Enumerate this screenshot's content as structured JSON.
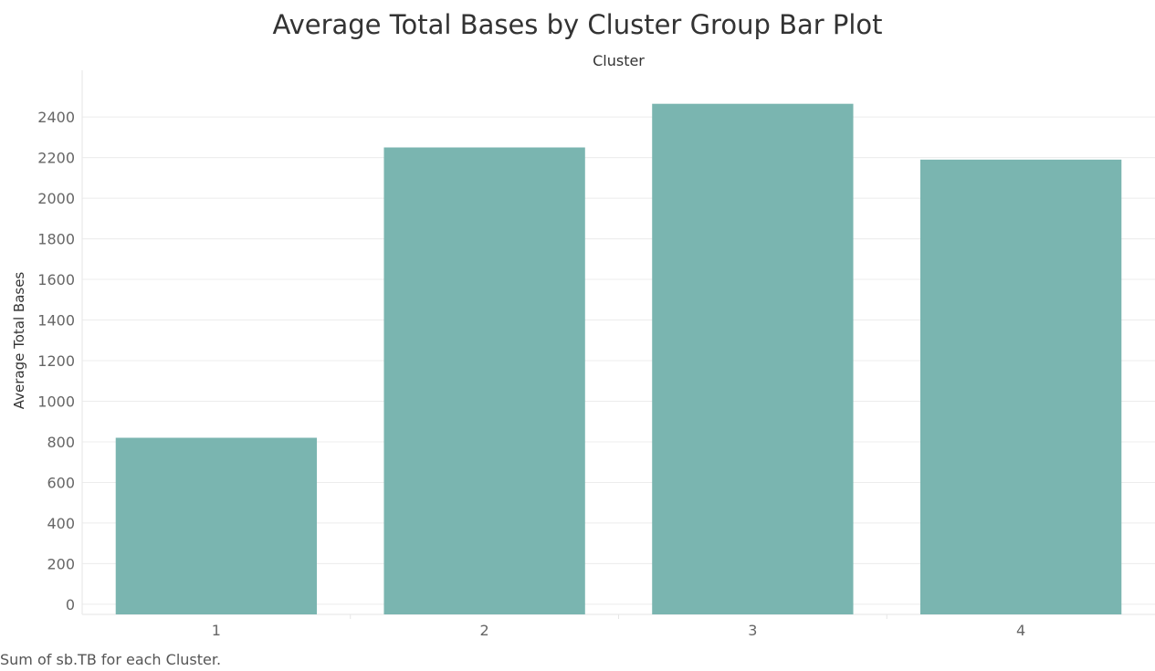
{
  "caption": "Sum of sb.TB for each Cluster.",
  "chart_data": {
    "type": "bar",
    "title": "Average Total Bases by Cluster Group Bar Plot",
    "column_header": "Cluster",
    "xlabel": "",
    "ylabel": "Average Total Bases",
    "categories": [
      "1",
      "2",
      "3",
      "4"
    ],
    "values": [
      820,
      2250,
      2465,
      2190
    ],
    "ylim": [
      -50,
      2630
    ],
    "yticks": [
      0,
      200,
      400,
      600,
      800,
      1000,
      1200,
      1400,
      1600,
      1800,
      2000,
      2200,
      2400
    ],
    "bar_color": "#7ab5b0",
    "grid": true,
    "legend": "none"
  }
}
